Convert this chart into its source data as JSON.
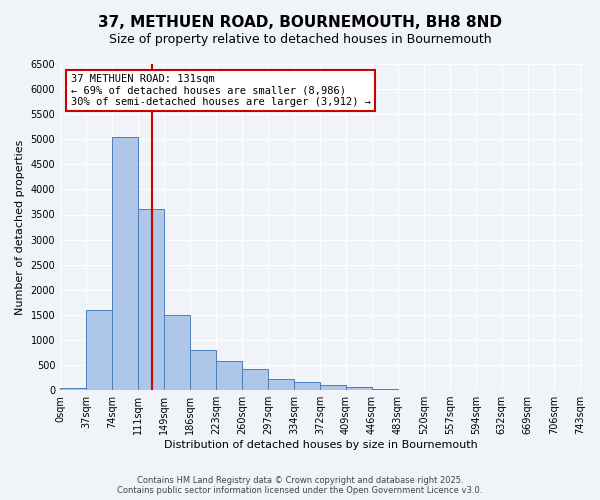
{
  "title": "37, METHUEN ROAD, BOURNEMOUTH, BH8 8ND",
  "subtitle": "Size of property relative to detached houses in Bournemouth",
  "xlabel": "Distribution of detached houses by size in Bournemouth",
  "ylabel": "Number of detached properties",
  "bin_edges": [
    0,
    37,
    74,
    111,
    148,
    185,
    222,
    259,
    296,
    333,
    370,
    407,
    444,
    481,
    518,
    555,
    592,
    629,
    666,
    703,
    740
  ],
  "bin_counts": [
    50,
    1600,
    5050,
    3600,
    1500,
    800,
    580,
    420,
    230,
    170,
    110,
    60,
    30,
    0,
    0,
    0,
    0,
    0,
    0,
    0
  ],
  "bar_color": "#aec6e8",
  "bar_edge_color": "#4a7fbf",
  "vline_x": 131,
  "vline_color": "#cc0000",
  "annotation_text": "37 METHUEN ROAD: 131sqm\n← 69% of detached houses are smaller (8,986)\n30% of semi-detached houses are larger (3,912) →",
  "annotation_box_color": "#cc0000",
  "ylim": [
    0,
    6500
  ],
  "yticks": [
    0,
    500,
    1000,
    1500,
    2000,
    2500,
    3000,
    3500,
    4000,
    4500,
    5000,
    5500,
    6000,
    6500
  ],
  "x_tick_labels": [
    "0sqm",
    "37sqm",
    "74sqm",
    "111sqm",
    "149sqm",
    "186sqm",
    "223sqm",
    "260sqm",
    "297sqm",
    "334sqm",
    "372sqm",
    "409sqm",
    "446sqm",
    "483sqm",
    "520sqm",
    "557sqm",
    "594sqm",
    "632sqm",
    "669sqm",
    "706sqm",
    "743sqm"
  ],
  "background_color": "#f0f4f8",
  "grid_color": "#ffffff",
  "footnote": "Contains HM Land Registry data © Crown copyright and database right 2025.\nContains public sector information licensed under the Open Government Licence v3.0.",
  "title_fontsize": 11,
  "subtitle_fontsize": 9,
  "axis_label_fontsize": 8,
  "tick_fontsize": 7,
  "annotation_fontsize": 7.5,
  "footnote_fontsize": 6
}
